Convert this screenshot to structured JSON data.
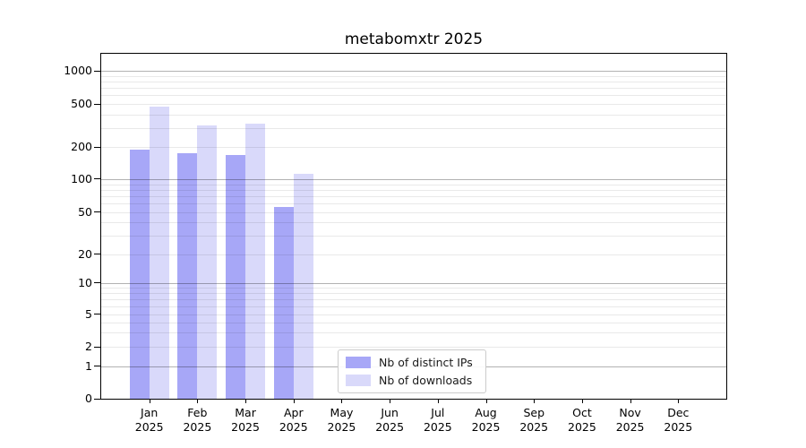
{
  "chart_data": {
    "type": "bar",
    "title": "metabomxtr 2025",
    "categories": [
      "Jan",
      "Feb",
      "Mar",
      "Apr",
      "May",
      "Jun",
      "Jul",
      "Aug",
      "Sep",
      "Oct",
      "Nov",
      "Dec"
    ],
    "category_year": "2025",
    "series": [
      {
        "name": "Nb of distinct IPs",
        "color": "#a7a7f7",
        "values": [
          190,
          175,
          168,
          56,
          null,
          null,
          null,
          null,
          null,
          null,
          null,
          null
        ]
      },
      {
        "name": "Nb of downloads",
        "color": "#d9d9fa",
        "values": [
          470,
          320,
          330,
          113,
          null,
          null,
          null,
          null,
          null,
          null,
          null,
          null
        ]
      }
    ],
    "yscale": "log-like with linear step to 0",
    "yticks": [
      0,
      1,
      2,
      5,
      10,
      20,
      50,
      100,
      200,
      500,
      1000
    ],
    "ytick_fractions_from_top": [
      1.0,
      0.9057,
      0.8494,
      0.7558,
      0.6642,
      0.581,
      0.459,
      0.3636,
      0.2714,
      0.1455,
      0.0494
    ],
    "grid": {
      "major_values": [
        1,
        10,
        100,
        1000
      ],
      "minor_values": [
        2,
        3,
        4,
        5,
        6,
        7,
        8,
        9,
        20,
        30,
        40,
        50,
        60,
        70,
        80,
        90,
        200,
        300,
        400,
        500,
        600,
        700,
        800,
        900
      ]
    },
    "legend_position": "lower center",
    "xlabel": "",
    "ylabel": ""
  }
}
